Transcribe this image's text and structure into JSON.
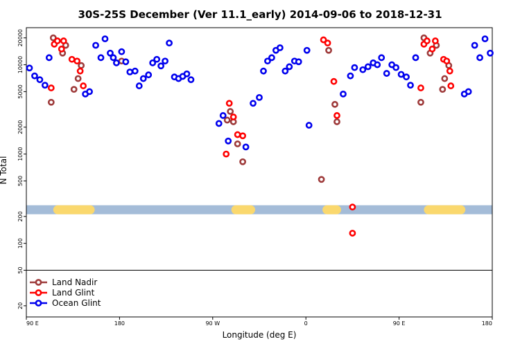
{
  "chart_data": {
    "type": "scatter",
    "title": "30S-25S December (Ver 11.1_early)   2014-09-06 to 2018-12-31",
    "xlabel": "Longitude (deg E)",
    "ylabel": "N Total",
    "yscale": "log",
    "xlim": [
      90,
      540
    ],
    "ylim": [
      15,
      26000
    ],
    "x_ticks": [
      {
        "value": 90,
        "label": "90 E"
      },
      {
        "value": 180,
        "label": "180"
      },
      {
        "value": 270,
        "label": "90 W"
      },
      {
        "value": 360,
        "label": "0"
      },
      {
        "value": 450,
        "label": "90 E"
      },
      {
        "value": 540,
        "label": "180"
      }
    ],
    "y_ticks": [
      {
        "value": 20,
        "label": "20"
      },
      {
        "value": 50,
        "label": "50"
      },
      {
        "value": 100,
        "label": "100"
      },
      {
        "value": 200,
        "label": "200"
      },
      {
        "value": 500,
        "label": "500"
      },
      {
        "value": 1000,
        "label": "1000"
      },
      {
        "value": 2000,
        "label": "2000"
      },
      {
        "value": 5000,
        "label": "5000"
      },
      {
        "value": 10000,
        "label": "10000"
      },
      {
        "value": 20000,
        "label": "20000"
      }
    ],
    "legend_separator_y": 50,
    "band": {
      "y": 240,
      "color": "#a4bcd8",
      "highlight_color": "#fad86e",
      "highlights": [
        [
          116,
          156
        ],
        [
          288,
          311
        ],
        [
          376,
          394
        ],
        [
          474,
          514
        ]
      ]
    },
    "legend_position": "bottom-left",
    "series": [
      {
        "name": "Land Nadir",
        "color": "#9e3a3a",
        "points": [
          [
            114,
            3800
          ],
          [
            116,
            20000
          ],
          [
            125,
            13500
          ],
          [
            128,
            16500
          ],
          [
            136,
            5300
          ],
          [
            140,
            7000
          ],
          [
            143,
            9800
          ],
          [
            182,
            11000
          ],
          [
            284,
            2400
          ],
          [
            287,
            3000
          ],
          [
            290,
            2300
          ],
          [
            294,
            1300
          ],
          [
            299,
            820
          ],
          [
            375,
            520
          ],
          [
            382,
            14500
          ],
          [
            388,
            3600
          ],
          [
            390,
            2300
          ],
          [
            471,
            3800
          ],
          [
            474,
            20000
          ],
          [
            480,
            13500
          ],
          [
            486,
            16500
          ],
          [
            492,
            5300
          ],
          [
            494,
            7000
          ],
          [
            498,
            9800
          ]
        ]
      },
      {
        "name": "Land Glint",
        "color": "#ff0000",
        "points": [
          [
            114,
            5500
          ],
          [
            117,
            17000
          ],
          [
            120,
            18500
          ],
          [
            124,
            15000
          ],
          [
            126,
            18500
          ],
          [
            134,
            11500
          ],
          [
            139,
            11000
          ],
          [
            142,
            8500
          ],
          [
            145,
            5800
          ],
          [
            283,
            1000
          ],
          [
            286,
            3700
          ],
          [
            290,
            2600
          ],
          [
            294,
            1650
          ],
          [
            299,
            1600
          ],
          [
            377,
            19000
          ],
          [
            381,
            17500
          ],
          [
            387,
            6500
          ],
          [
            390,
            2700
          ],
          [
            405,
            255
          ],
          [
            405,
            130
          ],
          [
            471,
            5500
          ],
          [
            474,
            17000
          ],
          [
            477,
            18500
          ],
          [
            482,
            15000
          ],
          [
            485,
            18500
          ],
          [
            493,
            11500
          ],
          [
            496,
            11000
          ],
          [
            499,
            8500
          ],
          [
            500,
            5800
          ]
        ]
      },
      {
        "name": "Ocean Glint",
        "color": "#0000ee",
        "points": [
          [
            93,
            9200
          ],
          [
            98,
            7500
          ],
          [
            103,
            6800
          ],
          [
            108,
            5900
          ],
          [
            112,
            12000
          ],
          [
            147,
            4700
          ],
          [
            151,
            5000
          ],
          [
            157,
            16500
          ],
          [
            162,
            12000
          ],
          [
            166,
            19500
          ],
          [
            171,
            13500
          ],
          [
            174,
            12000
          ],
          [
            177,
            10500
          ],
          [
            182,
            14000
          ],
          [
            186,
            10800
          ],
          [
            190,
            8300
          ],
          [
            195,
            8500
          ],
          [
            199,
            5800
          ],
          [
            203,
            7000
          ],
          [
            208,
            7700
          ],
          [
            212,
            10500
          ],
          [
            216,
            11500
          ],
          [
            220,
            9700
          ],
          [
            224,
            11000
          ],
          [
            228,
            17500
          ],
          [
            233,
            7300
          ],
          [
            237,
            7000
          ],
          [
            241,
            7400
          ],
          [
            245,
            7900
          ],
          [
            249,
            6800
          ],
          [
            276,
            2200
          ],
          [
            280,
            2700
          ],
          [
            285,
            1400
          ],
          [
            302,
            1200
          ],
          [
            309,
            3700
          ],
          [
            315,
            4300
          ],
          [
            319,
            8500
          ],
          [
            323,
            11000
          ],
          [
            327,
            12000
          ],
          [
            331,
            14500
          ],
          [
            335,
            15500
          ],
          [
            340,
            8500
          ],
          [
            344,
            9500
          ],
          [
            349,
            11000
          ],
          [
            353,
            10800
          ],
          [
            361,
            14500
          ],
          [
            363,
            2100
          ],
          [
            396,
            4700
          ],
          [
            403,
            7500
          ],
          [
            407,
            9300
          ],
          [
            415,
            8800
          ],
          [
            420,
            9500
          ],
          [
            425,
            10500
          ],
          [
            429,
            10000
          ],
          [
            433,
            12000
          ],
          [
            438,
            8000
          ],
          [
            443,
            10000
          ],
          [
            447,
            9300
          ],
          [
            452,
            7800
          ],
          [
            457,
            7300
          ],
          [
            461,
            5900
          ],
          [
            466,
            12000
          ],
          [
            513,
            4700
          ],
          [
            517,
            5000
          ],
          [
            523,
            16500
          ],
          [
            528,
            12000
          ],
          [
            533,
            19500
          ],
          [
            538,
            13500
          ]
        ]
      }
    ]
  }
}
